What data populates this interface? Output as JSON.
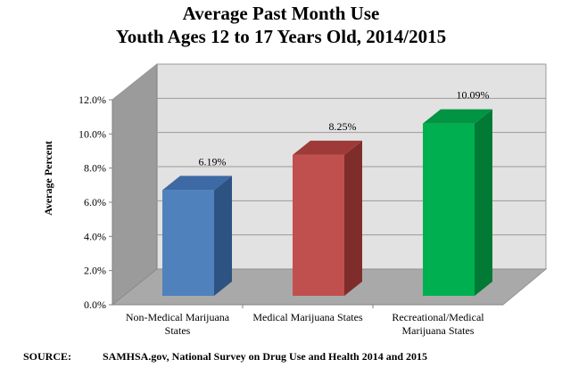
{
  "chart_data": {
    "type": "bar",
    "title": "Average Past Month Use",
    "subtitle": "Youth Ages 12 to 17 Years Old, 2014/2015",
    "ylabel": "Average Percent",
    "xlabel": "",
    "categories": [
      [
        "Non-Medical Marijuana",
        "States"
      ],
      [
        "Medical Marijuana States"
      ],
      [
        "Recreational/Medical",
        "Marijuana States"
      ]
    ],
    "values": [
      6.19,
      8.25,
      10.09
    ],
    "data_labels": [
      "6.19%",
      "8.25%",
      "10.09%"
    ],
    "ylim": [
      0,
      12
    ],
    "yticks": [
      "0.0%",
      "2.0%",
      "4.0%",
      "6.0%",
      "8.0%",
      "10.0%",
      "12.0%"
    ],
    "grid": true,
    "legend": "none",
    "colors": {
      "bars": [
        {
          "front": "#4f81bd",
          "side": "#2c5382",
          "top": "#3d6aa4"
        },
        {
          "front": "#c0504d",
          "side": "#7f2d2b",
          "top": "#9e3b38"
        },
        {
          "front": "#00b050",
          "side": "#007a35",
          "top": "#009443"
        }
      ],
      "back_wall": "#e2e2e2",
      "side_wall": "#9b9b9b",
      "floor": "#a9a9a9",
      "grid": "#9a9a9a"
    }
  },
  "source": {
    "label": "SOURCE:",
    "text": "SAMHSA.gov, National Survey on Drug Use and Health 2014 and 2015"
  }
}
